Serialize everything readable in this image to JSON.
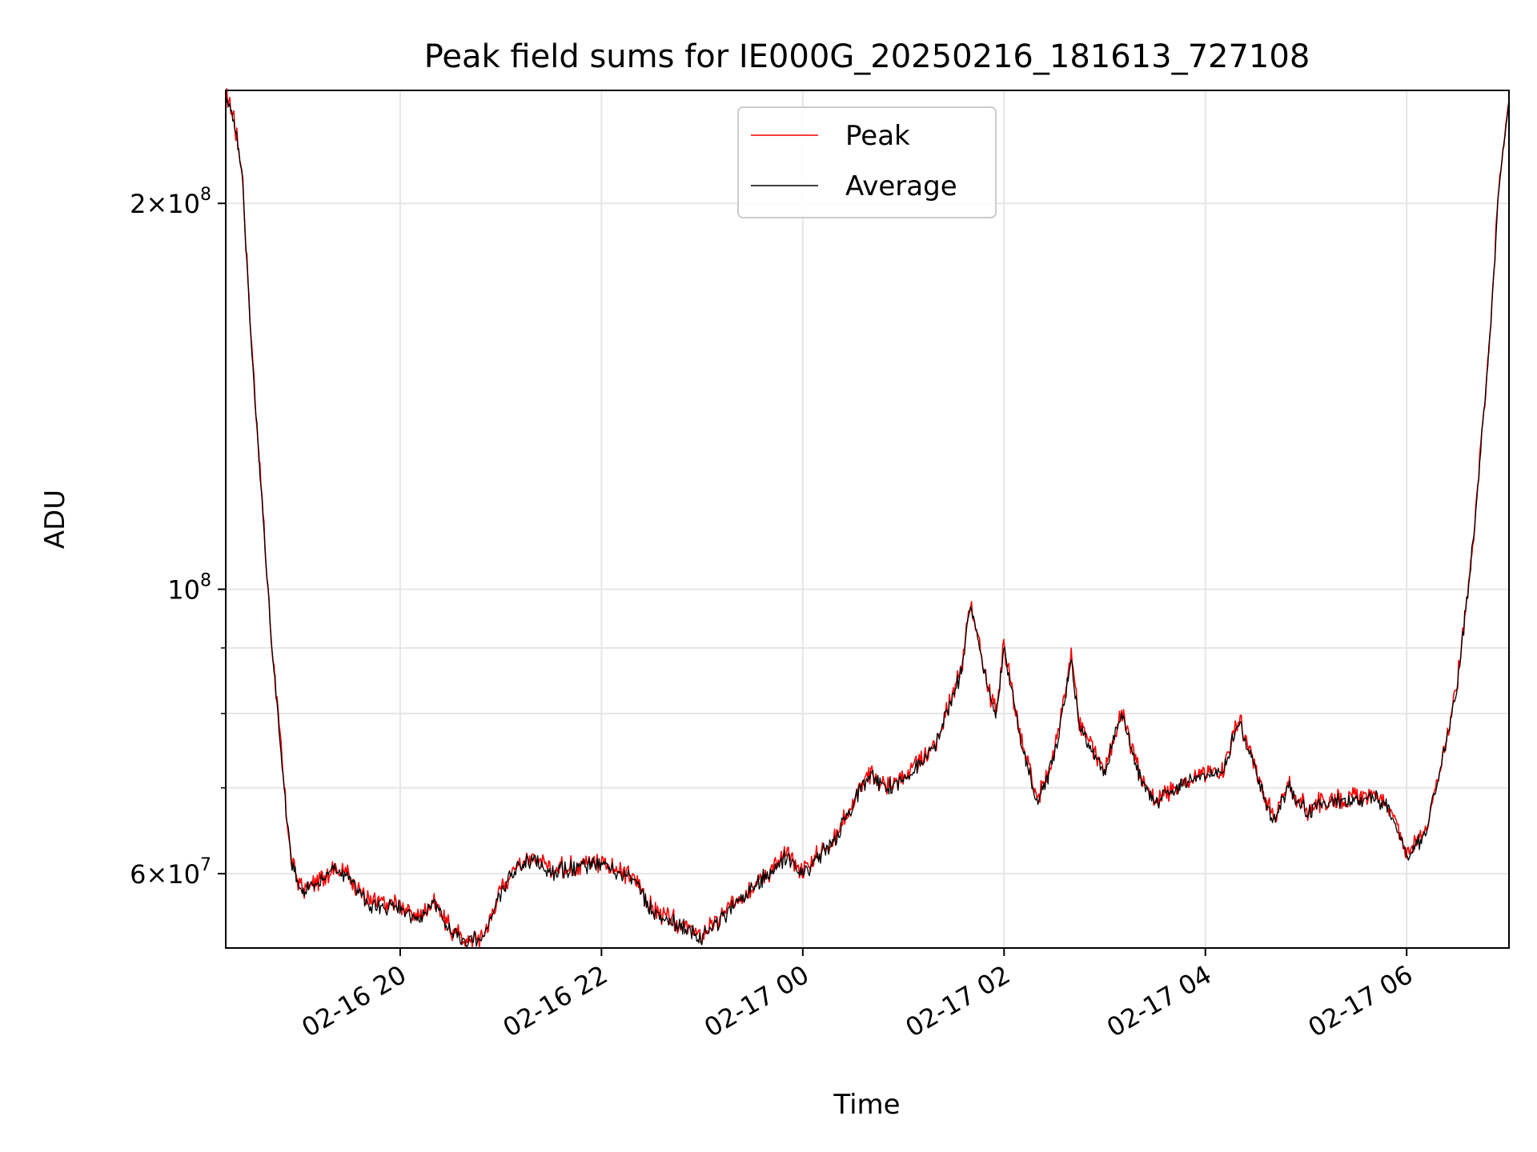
{
  "chart_data": {
    "type": "line",
    "title": "Peak field sums for IE000G_20250216_181613_727108",
    "xlabel": "Time",
    "ylabel": "ADU",
    "y_scale": "log",
    "ylim": [
      52500000,
      245000000
    ],
    "xlim": [
      "02-16 18:16",
      "02-17 07:01"
    ],
    "grid": true,
    "legend_position": "top-center",
    "x_ticks": [
      {
        "t": "02-16 20:00",
        "label": "02-16 20"
      },
      {
        "t": "02-16 22:00",
        "label": "02-16 22"
      },
      {
        "t": "02-17 00:00",
        "label": "02-17 00"
      },
      {
        "t": "02-17 02:00",
        "label": "02-17 02"
      },
      {
        "t": "02-17 04:00",
        "label": "02-17 04"
      },
      {
        "t": "02-17 06:00",
        "label": "02-17 06"
      }
    ],
    "y_ticks": [
      {
        "value": 200000000,
        "base": "2×10",
        "exp": "8"
      },
      {
        "value": 100000000,
        "base": "10",
        "exp": "8"
      },
      {
        "value": 60000000,
        "base": "6×10",
        "exp": "7"
      }
    ],
    "y_minor_ticks": [
      70000000,
      80000000,
      90000000
    ],
    "series": [
      {
        "name": "Peak",
        "color": "#ff0000",
        "noise": 0.014
      },
      {
        "name": "Average",
        "color": "#000000",
        "noise": 0.009
      }
    ],
    "x": [
      "02-16 18:16",
      "02-16 18:20",
      "02-16 18:26",
      "02-16 18:30",
      "02-16 18:36",
      "02-16 18:43",
      "02-16 18:50",
      "02-16 18:55",
      "02-16 19:02",
      "02-16 19:10",
      "02-16 19:20",
      "02-16 19:30",
      "02-16 19:40",
      "02-16 19:50",
      "02-16 20:00",
      "02-16 20:10",
      "02-16 20:20",
      "02-16 20:30",
      "02-16 20:40",
      "02-16 20:50",
      "02-16 21:00",
      "02-16 21:10",
      "02-16 21:20",
      "02-16 21:30",
      "02-16 21:40",
      "02-16 21:50",
      "02-16 22:00",
      "02-16 22:10",
      "02-16 22:20",
      "02-16 22:30",
      "02-16 22:40",
      "02-16 22:50",
      "02-16 23:00",
      "02-16 23:10",
      "02-16 23:20",
      "02-16 23:30",
      "02-16 23:40",
      "02-16 23:50",
      "02-17 00:00",
      "02-17 00:10",
      "02-17 00:20",
      "02-17 00:30",
      "02-17 00:40",
      "02-17 00:50",
      "02-17 01:00",
      "02-17 01:10",
      "02-17 01:20",
      "02-17 01:30",
      "02-17 01:35",
      "02-17 01:40",
      "02-17 01:50",
      "02-17 01:55",
      "02-17 02:00",
      "02-17 02:10",
      "02-17 02:20",
      "02-17 02:30",
      "02-17 02:40",
      "02-17 02:45",
      "02-17 02:50",
      "02-17 03:00",
      "02-17 03:10",
      "02-17 03:20",
      "02-17 03:30",
      "02-17 03:40",
      "02-17 03:50",
      "02-17 04:00",
      "02-17 04:10",
      "02-17 04:20",
      "02-17 04:30",
      "02-17 04:40",
      "02-17 04:50",
      "02-17 05:00",
      "02-17 05:10",
      "02-17 05:20",
      "02-17 05:30",
      "02-17 05:40",
      "02-17 05:50",
      "02-17 06:00",
      "02-17 06:10",
      "02-17 06:20",
      "02-17 06:30",
      "02-17 06:40",
      "02-17 06:50",
      "02-17 06:55",
      "02-17 07:01"
    ],
    "y": [
      241000000,
      236000000,
      210000000,
      165000000,
      125000000,
      92000000,
      72000000,
      61000000,
      58000000,
      59000000,
      60500000,
      59500000,
      57000000,
      56500000,
      56500000,
      55000000,
      57000000,
      54000000,
      53000000,
      53500000,
      58000000,
      61000000,
      61500000,
      60000000,
      60500000,
      61000000,
      61000000,
      60000000,
      59500000,
      56000000,
      55000000,
      54500000,
      53500000,
      55000000,
      57000000,
      58500000,
      60000000,
      62000000,
      60000000,
      62000000,
      64000000,
      68000000,
      71500000,
      70000000,
      71000000,
      73000000,
      76000000,
      83000000,
      86500000,
      98000000,
      84000000,
      80000000,
      90000000,
      76000000,
      68000000,
      74000000,
      88000000,
      78000000,
      76000000,
      72000000,
      80000000,
      72000000,
      68000000,
      69500000,
      71000000,
      71500000,
      72000000,
      79000000,
      72000000,
      66000000,
      70000000,
      67000000,
      68000000,
      68500000,
      68500000,
      69000000,
      67500000,
      62000000,
      64000000,
      72000000,
      84000000,
      110000000,
      160000000,
      205000000,
      240000000
    ]
  }
}
